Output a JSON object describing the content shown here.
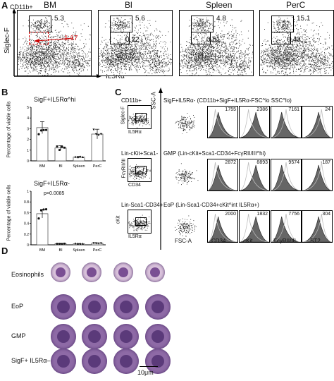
{
  "panelA": {
    "label": "A",
    "ylab": "Siglec-F",
    "xlab": "IL5Rα",
    "gate_label": "CD11b+",
    "plots": [
      {
        "title": "BM",
        "upper": "5.3",
        "lower": "1.17"
      },
      {
        "title": "Bl",
        "upper": "5.6",
        "lower": "0.22"
      },
      {
        "title": "Spleen",
        "upper": "4.8",
        "lower": "0.51"
      },
      {
        "title": "PerC",
        "upper": "15.1",
        "lower": "0.43"
      }
    ]
  },
  "panelB": {
    "label": "B",
    "top_title": "SigF+IL5Rα^hi",
    "bot_title": "SigF+IL5Rα-",
    "pvalue": "p=0.0085",
    "ylabel": "Percentage of viable cells",
    "categories": [
      "BM",
      "Bl",
      "Spleen",
      "PerC"
    ]
  },
  "panelC": {
    "label": "C",
    "rows": [
      {
        "gate": "CD11b+",
        "ylab": "Siglec-F",
        "xlab": "IL5Rα",
        "title": "SigF+IL5Rα- (CD11b+SigF+IL5Rα-FSC^lo SSC^lo)",
        "nums": [
          "1755",
          "2386",
          "7161",
          "24"
        ]
      },
      {
        "gate": "Lin-cKit+Sca1-",
        "ylab": "FcγRII/III",
        "xlab": "CD34",
        "title": "GMP (Lin-cKit+Sca1-CD34+FcγRII/III^hi)",
        "nums": [
          "2872",
          "8893",
          "9574",
          "-187"
        ]
      },
      {
        "gate": "Lin-Sca1-CD34+",
        "ylab": "cKit",
        "xlab": "IL5Rα",
        "title": "EoP (Lin-Sca1-CD34+cKit^int IL5Rα+)",
        "nums": [
          "2000",
          "1832",
          "7756",
          "304"
        ]
      }
    ],
    "sscA": "SSC-A",
    "fscA": "FSC-A",
    "hist_x": [
      "CD34",
      "cKit",
      "FcγRII/III",
      "ST2"
    ]
  },
  "panelD": {
    "label": "D",
    "rows": [
      "Eosinophils",
      "EoP",
      "GMP",
      "SigF+ IL5Rα–"
    ],
    "scale": "10μm"
  },
  "chart_data": [
    {
      "type": "bar",
      "title": "SigF+IL5Rα^hi",
      "ylabel": "Percentage of viable cells",
      "categories": [
        "BM",
        "Bl",
        "Spleen",
        "PerC"
      ],
      "values": [
        3.1,
        1.2,
        0.35,
        2.5
      ],
      "ylim": [
        0,
        5
      ]
    },
    {
      "type": "bar",
      "title": "SigF+IL5Rα-",
      "ylabel": "Percentage of viable cells",
      "categories": [
        "BM",
        "Bl",
        "Spleen",
        "PerC"
      ],
      "values": [
        0.58,
        0.02,
        0.02,
        0.03
      ],
      "ylim": [
        0,
        1.0
      ],
      "annotation": "p=0.0085"
    }
  ]
}
